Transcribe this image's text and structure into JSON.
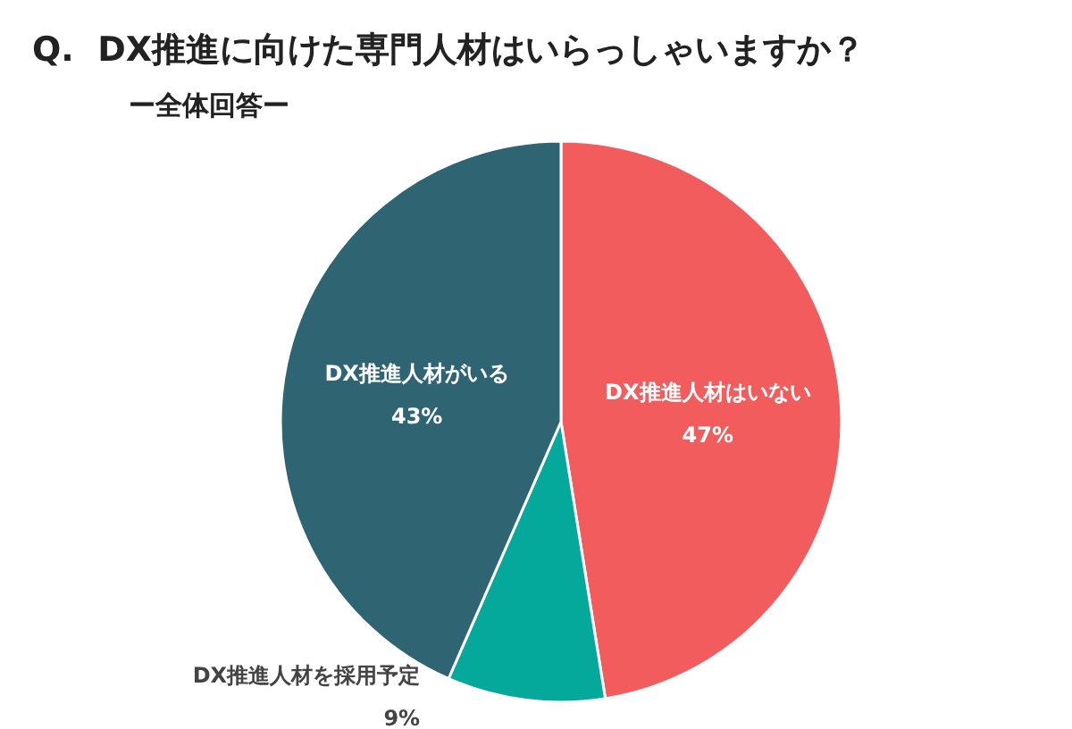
{
  "chart_data": {
    "type": "pie",
    "title": "Q.  DX推進に向けた専門人材はいらっしゃいますか？",
    "subtitle": "ー全体回答ー",
    "categories": [
      "DX推進人材はいない",
      "DX推進人材を採用予定",
      "DX推進人材がいる"
    ],
    "values": [
      47,
      9,
      43
    ],
    "colors": [
      "#f25c5d",
      "#04a99b",
      "#2f6473"
    ],
    "value_labels": [
      "47%",
      "9%",
      "43%"
    ]
  }
}
